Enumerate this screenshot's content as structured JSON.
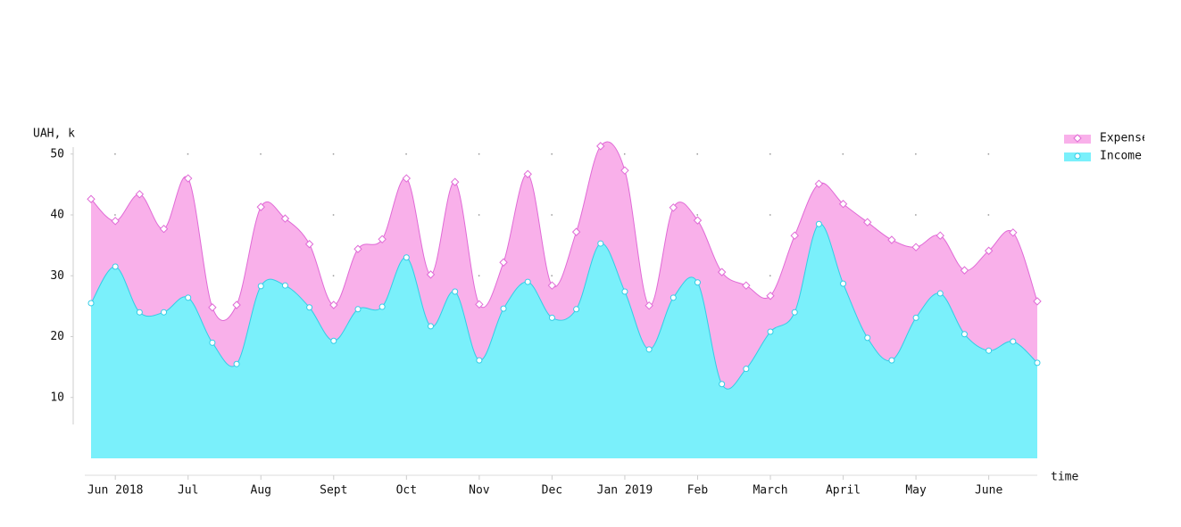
{
  "chart_data": {
    "type": "area",
    "y_label": "UAH, k",
    "x_label": "time",
    "categories": [
      null,
      "Jun 2018",
      null,
      null,
      "Jul",
      null,
      null,
      "Aug",
      null,
      null,
      "Sept",
      null,
      null,
      "Oct",
      null,
      null,
      "Nov",
      null,
      null,
      "Dec",
      null,
      null,
      "Jan 2019",
      null,
      null,
      "Feb",
      null,
      null,
      "March",
      null,
      null,
      "April",
      null,
      null,
      "May",
      null,
      null,
      "June",
      null,
      null
    ],
    "series": [
      {
        "name": "Expenses",
        "color": "#f9b0ea",
        "stroke": "#e06ad6",
        "marker": "diamond",
        "values": [
          42.6,
          39.0,
          43.4,
          37.7,
          46.0,
          24.8,
          25.2,
          41.3,
          39.4,
          35.2,
          25.2,
          34.4,
          36.0,
          46.0,
          30.2,
          45.4,
          25.3,
          32.2,
          46.7,
          28.4,
          37.2,
          51.3,
          47.3,
          25.1,
          41.2,
          39.1,
          30.6,
          28.4,
          26.7,
          36.6,
          45.1,
          41.8,
          38.8,
          35.9,
          34.7,
          36.6,
          30.9,
          34.1,
          37.1,
          25.8
        ]
      },
      {
        "name": "Income",
        "color": "#7af0fb",
        "stroke": "#33cde6",
        "marker": "circle",
        "values": [
          25.5,
          31.5,
          24.0,
          24.0,
          26.4,
          19.0,
          15.5,
          28.3,
          28.4,
          24.8,
          19.3,
          24.5,
          24.9,
          33.0,
          21.7,
          27.4,
          16.1,
          24.6,
          29.0,
          23.1,
          24.5,
          35.3,
          27.4,
          17.9,
          26.4,
          28.9,
          12.2,
          14.7,
          20.8,
          24.0,
          38.5,
          28.7,
          19.8,
          16.1,
          23.1,
          27.1,
          20.4,
          17.7,
          19.2,
          15.7
        ]
      }
    ],
    "ylim": [
      0,
      52
    ],
    "yticks": [
      10,
      20,
      30,
      40,
      50
    ],
    "grid": true,
    "legend": "right"
  }
}
